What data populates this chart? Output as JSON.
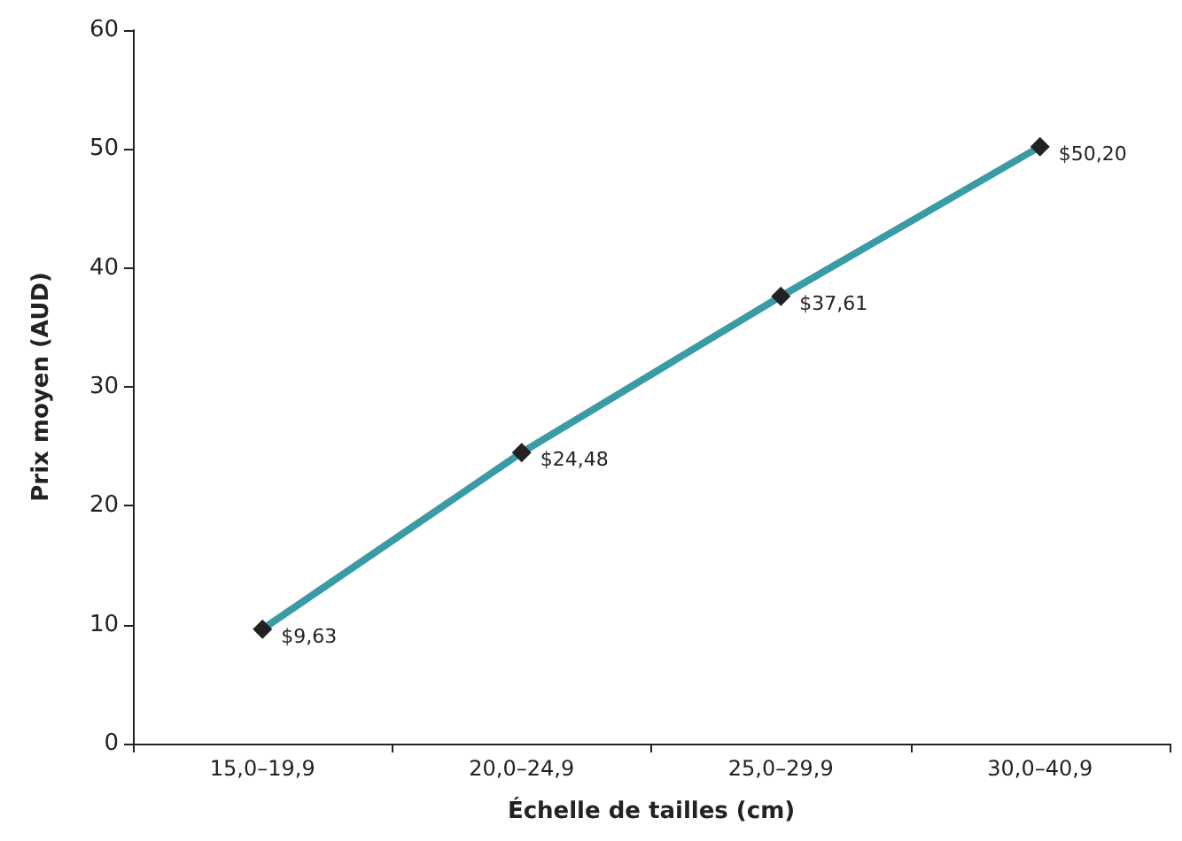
{
  "chart_data": {
    "type": "line",
    "xlabel": "Échelle de tailles (cm)",
    "ylabel": "Prix moyen (AUD)",
    "categories": [
      "15,0–19,9",
      "20,0–24,9",
      "25,0–29,9",
      "30,0–40,9"
    ],
    "series": [
      {
        "color": "#3a9aa6",
        "values": [
          9.63,
          24.48,
          37.61,
          50.2
        ],
        "value_labels": [
          "$9,63",
          "$24,48",
          "$37,61",
          "$50,20"
        ]
      }
    ],
    "ylim": [
      0,
      60
    ],
    "yticks": [
      0,
      10,
      20,
      30,
      40,
      50,
      60
    ],
    "grid": false,
    "marker": "diamond",
    "line_style": "solid"
  }
}
